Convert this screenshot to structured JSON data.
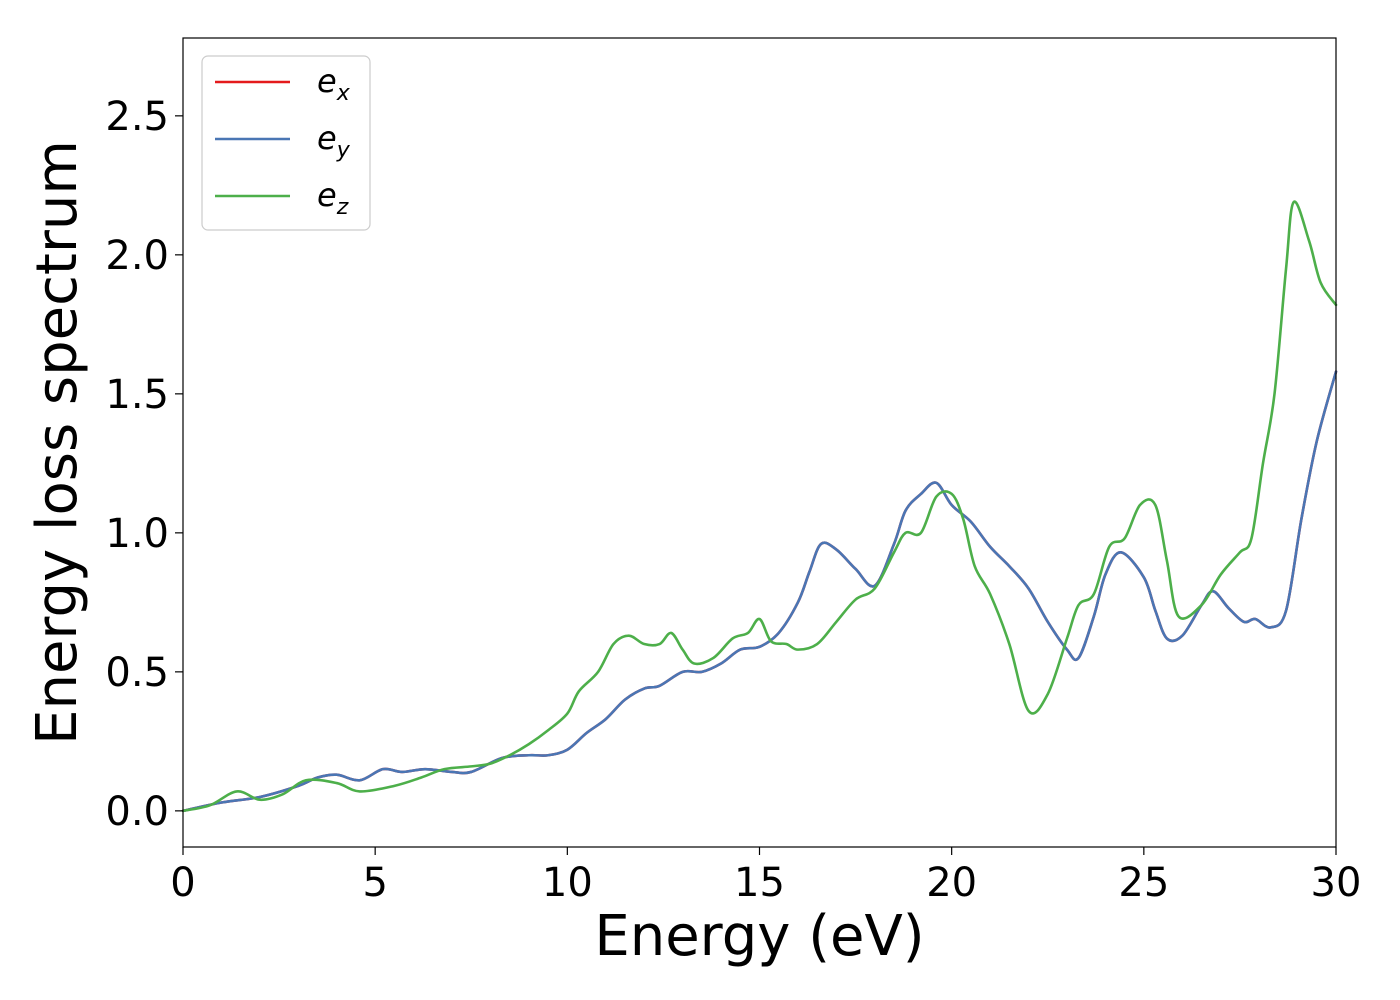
{
  "chart_data": {
    "type": "line",
    "xlabel": "Energy (eV)",
    "ylabel": "Energy loss spectrum",
    "xlim": [
      0,
      30
    ],
    "ylim": [
      -0.13,
      2.78
    ],
    "xticks": [
      0,
      5,
      10,
      15,
      20,
      25,
      30
    ],
    "xtick_labels": [
      "0",
      "5",
      "10",
      "15",
      "20",
      "25",
      "30"
    ],
    "yticks": [
      0.0,
      0.5,
      1.0,
      1.5,
      2.0,
      2.5
    ],
    "ytick_labels": [
      "0.0",
      "0.5",
      "1.0",
      "1.5",
      "2.0",
      "2.5"
    ],
    "grid": false,
    "legend_position": "top-left",
    "series": [
      {
        "name": "e_x",
        "legend_base": "e",
        "legend_sub": "x",
        "color": "#e41a1c",
        "points": [
          [
            0,
            0
          ],
          [
            1,
            0.03
          ],
          [
            2,
            0.05
          ],
          [
            3,
            0.09
          ],
          [
            3.5,
            0.12
          ],
          [
            4,
            0.13
          ],
          [
            4.6,
            0.11
          ],
          [
            5.2,
            0.15
          ],
          [
            5.7,
            0.14
          ],
          [
            6.3,
            0.15
          ],
          [
            7,
            0.14
          ],
          [
            7.5,
            0.14
          ],
          [
            8.3,
            0.19
          ],
          [
            9,
            0.2
          ],
          [
            9.5,
            0.2
          ],
          [
            10,
            0.22
          ],
          [
            10.5,
            0.28
          ],
          [
            11,
            0.33
          ],
          [
            11.5,
            0.4
          ],
          [
            12,
            0.44
          ],
          [
            12.4,
            0.45
          ],
          [
            13,
            0.5
          ],
          [
            13.5,
            0.5
          ],
          [
            14,
            0.53
          ],
          [
            14.5,
            0.58
          ],
          [
            15,
            0.59
          ],
          [
            15.5,
            0.64
          ],
          [
            16,
            0.75
          ],
          [
            16.3,
            0.86
          ],
          [
            16.6,
            0.96
          ],
          [
            17,
            0.94
          ],
          [
            17.5,
            0.87
          ],
          [
            18,
            0.81
          ],
          [
            18.5,
            0.96
          ],
          [
            18.8,
            1.08
          ],
          [
            19.2,
            1.14
          ],
          [
            19.6,
            1.18
          ],
          [
            20,
            1.1
          ],
          [
            20.5,
            1.04
          ],
          [
            21,
            0.95
          ],
          [
            21.5,
            0.88
          ],
          [
            22,
            0.8
          ],
          [
            22.5,
            0.68
          ],
          [
            23,
            0.58
          ],
          [
            23.3,
            0.55
          ],
          [
            23.7,
            0.7
          ],
          [
            24,
            0.85
          ],
          [
            24.4,
            0.93
          ],
          [
            25,
            0.84
          ],
          [
            25.3,
            0.72
          ],
          [
            25.6,
            0.62
          ],
          [
            26,
            0.63
          ],
          [
            26.5,
            0.74
          ],
          [
            26.8,
            0.79
          ],
          [
            27.2,
            0.73
          ],
          [
            27.6,
            0.68
          ],
          [
            27.9,
            0.69
          ],
          [
            28.3,
            0.66
          ],
          [
            28.7,
            0.72
          ],
          [
            29.1,
            1.05
          ],
          [
            29.5,
            1.33
          ],
          [
            30,
            1.58
          ]
        ]
      },
      {
        "name": "e_y",
        "legend_base": "e",
        "legend_sub": "y",
        "color": "#4a76b4",
        "points": [
          [
            0,
            0
          ],
          [
            1,
            0.03
          ],
          [
            2,
            0.05
          ],
          [
            3,
            0.09
          ],
          [
            3.5,
            0.12
          ],
          [
            4,
            0.13
          ],
          [
            4.6,
            0.11
          ],
          [
            5.2,
            0.15
          ],
          [
            5.7,
            0.14
          ],
          [
            6.3,
            0.15
          ],
          [
            7,
            0.14
          ],
          [
            7.5,
            0.14
          ],
          [
            8.3,
            0.19
          ],
          [
            9,
            0.2
          ],
          [
            9.5,
            0.2
          ],
          [
            10,
            0.22
          ],
          [
            10.5,
            0.28
          ],
          [
            11,
            0.33
          ],
          [
            11.5,
            0.4
          ],
          [
            12,
            0.44
          ],
          [
            12.4,
            0.45
          ],
          [
            13,
            0.5
          ],
          [
            13.5,
            0.5
          ],
          [
            14,
            0.53
          ],
          [
            14.5,
            0.58
          ],
          [
            15,
            0.59
          ],
          [
            15.5,
            0.64
          ],
          [
            16,
            0.75
          ],
          [
            16.3,
            0.86
          ],
          [
            16.6,
            0.96
          ],
          [
            17,
            0.94
          ],
          [
            17.5,
            0.87
          ],
          [
            18,
            0.81
          ],
          [
            18.5,
            0.96
          ],
          [
            18.8,
            1.08
          ],
          [
            19.2,
            1.14
          ],
          [
            19.6,
            1.18
          ],
          [
            20,
            1.1
          ],
          [
            20.5,
            1.04
          ],
          [
            21,
            0.95
          ],
          [
            21.5,
            0.88
          ],
          [
            22,
            0.8
          ],
          [
            22.5,
            0.68
          ],
          [
            23,
            0.58
          ],
          [
            23.3,
            0.55
          ],
          [
            23.7,
            0.7
          ],
          [
            24,
            0.85
          ],
          [
            24.4,
            0.93
          ],
          [
            25,
            0.84
          ],
          [
            25.3,
            0.72
          ],
          [
            25.6,
            0.62
          ],
          [
            26,
            0.63
          ],
          [
            26.5,
            0.74
          ],
          [
            26.8,
            0.79
          ],
          [
            27.2,
            0.73
          ],
          [
            27.6,
            0.68
          ],
          [
            27.9,
            0.69
          ],
          [
            28.3,
            0.66
          ],
          [
            28.7,
            0.72
          ],
          [
            29.1,
            1.05
          ],
          [
            29.5,
            1.33
          ],
          [
            30,
            1.58
          ]
        ]
      },
      {
        "name": "e_z",
        "legend_base": "e",
        "legend_sub": "z",
        "color": "#4daf4a",
        "points": [
          [
            0,
            0
          ],
          [
            0.7,
            0.02
          ],
          [
            1.4,
            0.07
          ],
          [
            2,
            0.04
          ],
          [
            2.6,
            0.06
          ],
          [
            3.2,
            0.11
          ],
          [
            4,
            0.1
          ],
          [
            4.6,
            0.07
          ],
          [
            5.5,
            0.09
          ],
          [
            6.2,
            0.12
          ],
          [
            6.8,
            0.15
          ],
          [
            7.5,
            0.16
          ],
          [
            8,
            0.17
          ],
          [
            8.5,
            0.2
          ],
          [
            9,
            0.24
          ],
          [
            9.5,
            0.29
          ],
          [
            10,
            0.35
          ],
          [
            10.3,
            0.43
          ],
          [
            10.8,
            0.5
          ],
          [
            11.2,
            0.6
          ],
          [
            11.6,
            0.63
          ],
          [
            12,
            0.6
          ],
          [
            12.4,
            0.6
          ],
          [
            12.7,
            0.64
          ],
          [
            13,
            0.58
          ],
          [
            13.3,
            0.53
          ],
          [
            13.8,
            0.55
          ],
          [
            14.3,
            0.62
          ],
          [
            14.7,
            0.64
          ],
          [
            15,
            0.69
          ],
          [
            15.3,
            0.61
          ],
          [
            15.7,
            0.6
          ],
          [
            16,
            0.58
          ],
          [
            16.5,
            0.6
          ],
          [
            17,
            0.68
          ],
          [
            17.5,
            0.76
          ],
          [
            18,
            0.8
          ],
          [
            18.5,
            0.93
          ],
          [
            18.8,
            1.0
          ],
          [
            19.2,
            1.0
          ],
          [
            19.6,
            1.13
          ],
          [
            20,
            1.14
          ],
          [
            20.3,
            1.05
          ],
          [
            20.6,
            0.88
          ],
          [
            21,
            0.78
          ],
          [
            21.5,
            0.6
          ],
          [
            22,
            0.36
          ],
          [
            22.5,
            0.42
          ],
          [
            23,
            0.62
          ],
          [
            23.3,
            0.74
          ],
          [
            23.7,
            0.78
          ],
          [
            24.1,
            0.95
          ],
          [
            24.5,
            0.98
          ],
          [
            24.9,
            1.1
          ],
          [
            25.3,
            1.1
          ],
          [
            25.6,
            0.9
          ],
          [
            25.9,
            0.7
          ],
          [
            26.5,
            0.74
          ],
          [
            27,
            0.85
          ],
          [
            27.5,
            0.93
          ],
          [
            27.8,
            0.98
          ],
          [
            28.1,
            1.25
          ],
          [
            28.4,
            1.5
          ],
          [
            28.7,
            1.95
          ],
          [
            28.9,
            2.19
          ],
          [
            29.3,
            2.05
          ],
          [
            29.6,
            1.9
          ],
          [
            30,
            1.82
          ]
        ]
      }
    ]
  }
}
